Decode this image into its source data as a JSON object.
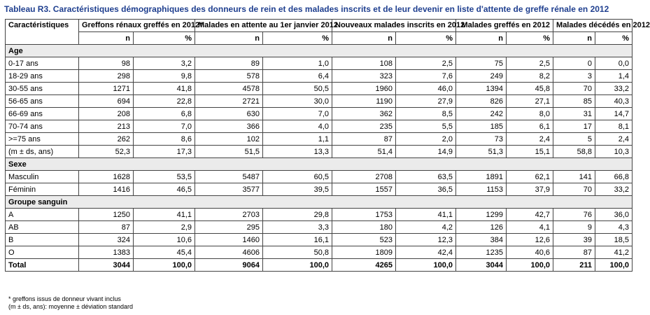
{
  "title": "Tableau R3. Caractéristiques démographiques des donneurs de rein et des malades inscrits et de leur devenir en liste d'attente de greffe rénale en 2012",
  "header": {
    "first_col": "Caractéristiques",
    "groups": [
      "Greffons rénaux greffés en 2012*",
      "Malades en attente au 1er janvier 2012",
      "Nouveaux malades inscrits en 2012",
      "Malades greffés en 2012",
      "Malades décédés en 2012"
    ],
    "sub_n": "n",
    "sub_pct": "%"
  },
  "sections": [
    {
      "title": "Age",
      "rows": [
        {
          "label": "0-17 ans",
          "values": [
            "98",
            "3,2",
            "89",
            "1,0",
            "108",
            "2,5",
            "75",
            "2,5",
            "0",
            "0,0"
          ]
        },
        {
          "label": "18-29 ans",
          "values": [
            "298",
            "9,8",
            "578",
            "6,4",
            "323",
            "7,6",
            "249",
            "8,2",
            "3",
            "1,4"
          ]
        },
        {
          "label": "30-55 ans",
          "values": [
            "1271",
            "41,8",
            "4578",
            "50,5",
            "1960",
            "46,0",
            "1394",
            "45,8",
            "70",
            "33,2"
          ]
        },
        {
          "label": "56-65 ans",
          "values": [
            "694",
            "22,8",
            "2721",
            "30,0",
            "1190",
            "27,9",
            "826",
            "27,1",
            "85",
            "40,3"
          ]
        },
        {
          "label": "66-69 ans",
          "values": [
            "208",
            "6,8",
            "630",
            "7,0",
            "362",
            "8,5",
            "242",
            "8,0",
            "31",
            "14,7"
          ]
        },
        {
          "label": "70-74 ans",
          "values": [
            "213",
            "7,0",
            "366",
            "4,0",
            "235",
            "5,5",
            "185",
            "6,1",
            "17",
            "8,1"
          ]
        },
        {
          "label": ">=75 ans",
          "values": [
            "262",
            "8,6",
            "102",
            "1,1",
            "87",
            "2,0",
            "73",
            "2,4",
            "5",
            "2,4"
          ]
        },
        {
          "label": "(m ± ds, ans)",
          "values": [
            "52,3",
            "17,3",
            "51,5",
            "13,3",
            "51,4",
            "14,9",
            "51,3",
            "15,1",
            "58,8",
            "10,3"
          ]
        }
      ]
    },
    {
      "title": "Sexe",
      "rows": [
        {
          "label": "Masculin",
          "values": [
            "1628",
            "53,5",
            "5487",
            "60,5",
            "2708",
            "63,5",
            "1891",
            "62,1",
            "141",
            "66,8"
          ]
        },
        {
          "label": "Féminin",
          "values": [
            "1416",
            "46,5",
            "3577",
            "39,5",
            "1557",
            "36,5",
            "1153",
            "37,9",
            "70",
            "33,2"
          ]
        }
      ]
    },
    {
      "title": "Groupe sanguin",
      "rows": [
        {
          "label": "A",
          "values": [
            "1250",
            "41,1",
            "2703",
            "29,8",
            "1753",
            "41,1",
            "1299",
            "42,7",
            "76",
            "36,0"
          ]
        },
        {
          "label": "AB",
          "values": [
            "87",
            "2,9",
            "295",
            "3,3",
            "180",
            "4,2",
            "126",
            "4,1",
            "9",
            "4,3"
          ]
        },
        {
          "label": "B",
          "values": [
            "324",
            "10,6",
            "1460",
            "16,1",
            "523",
            "12,3",
            "384",
            "12,6",
            "39",
            "18,5"
          ]
        },
        {
          "label": "O",
          "values": [
            "1383",
            "45,4",
            "4606",
            "50,8",
            "1809",
            "42,4",
            "1235",
            "40,6",
            "87",
            "41,2"
          ]
        }
      ]
    }
  ],
  "total": {
    "label": "Total",
    "values": [
      "3044",
      "100,0",
      "9064",
      "100,0",
      "4265",
      "100,0",
      "3044",
      "100,0",
      "211",
      "100,0"
    ]
  },
  "notes": [
    "* greffons issus de donneur vivant inclus",
    "(m ± ds, ans): moyenne ± déviation standard"
  ]
}
